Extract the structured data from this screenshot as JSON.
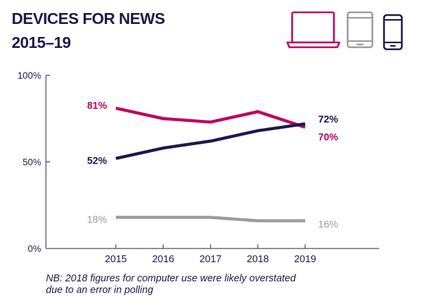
{
  "header": {
    "title_line1": "DEVICES FOR NEWS",
    "title_line2": "2015–19"
  },
  "legend_icons": [
    {
      "icon": "laptop-icon",
      "color": "#c1025f"
    },
    {
      "icon": "tablet-icon",
      "color": "#9b9ba0"
    },
    {
      "icon": "smartphone-icon",
      "color": "#1b1a4d"
    }
  ],
  "note": {
    "line1": "NB: 2018 figures for computer use were likely overstated",
    "line2": "due to an error in polling"
  },
  "chart_data": {
    "type": "line",
    "x": [
      2015,
      2016,
      2017,
      2018,
      2019
    ],
    "ylim": [
      0,
      100
    ],
    "yticks": [
      "0%",
      "50%",
      "100%"
    ],
    "grid": false,
    "series": [
      {
        "icon": "laptop-icon",
        "color": "#c1025f",
        "values": [
          81,
          75,
          73,
          79,
          70
        ],
        "start_label": "81%",
        "end_label": "70%"
      },
      {
        "icon": "smartphone-icon",
        "color": "#1b1a4d",
        "values": [
          52,
          58,
          62,
          68,
          72
        ],
        "start_label": "52%",
        "end_label": "72%"
      },
      {
        "icon": "tablet-icon",
        "color": "#9b9ba0",
        "values": [
          18,
          18,
          18,
          16,
          16
        ],
        "start_label": "18%",
        "end_label": "16%"
      }
    ]
  }
}
